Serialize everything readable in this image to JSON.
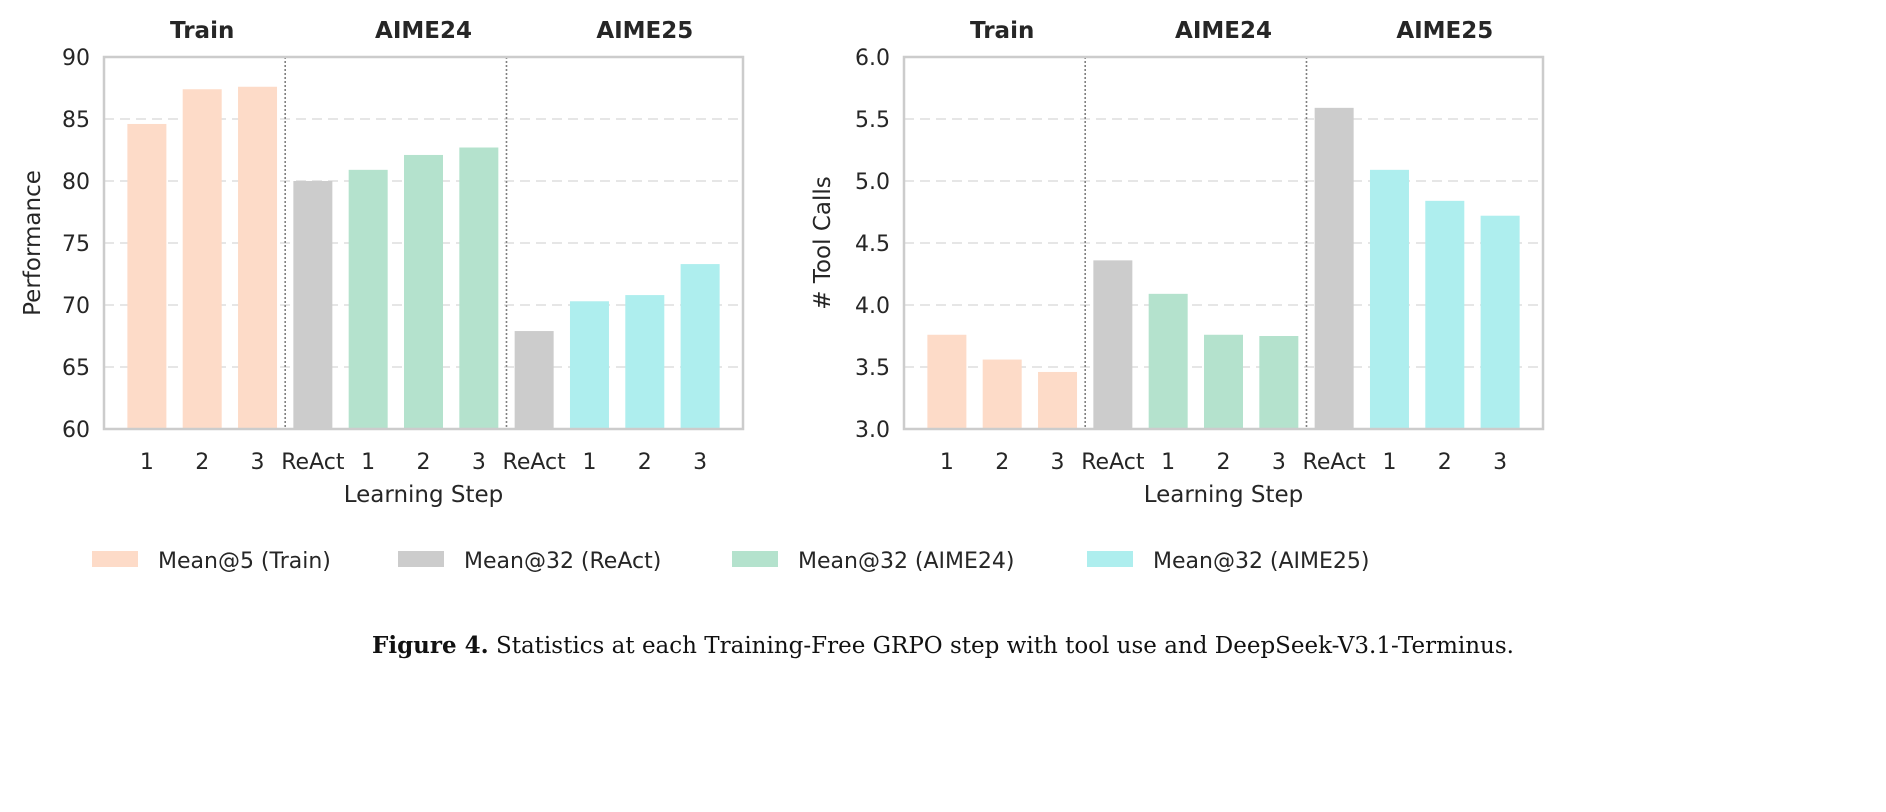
{
  "chart_data": [
    {
      "type": "bar",
      "group_titles": [
        "Train",
        "AIME24",
        "AIME25"
      ],
      "categories": [
        "1",
        "2",
        "3",
        "ReAct",
        "1",
        "2",
        "3",
        "ReAct",
        "1",
        "2",
        "3"
      ],
      "values": [
        84.6,
        87.4,
        87.6,
        80.0,
        80.9,
        82.1,
        82.7,
        67.9,
        70.3,
        70.8,
        73.3
      ],
      "series_index": [
        0,
        0,
        0,
        1,
        2,
        2,
        2,
        1,
        3,
        3,
        3
      ],
      "xlabel": "Learning Step",
      "ylabel": "Performance",
      "ylim": [
        60,
        90
      ],
      "yticks": [
        "60",
        "65",
        "70",
        "75",
        "80",
        "85",
        "90"
      ],
      "grid": true
    },
    {
      "type": "bar",
      "group_titles": [
        "Train",
        "AIME24",
        "AIME25"
      ],
      "categories": [
        "1",
        "2",
        "3",
        "ReAct",
        "1",
        "2",
        "3",
        "ReAct",
        "1",
        "2",
        "3"
      ],
      "values": [
        3.76,
        3.56,
        3.46,
        4.36,
        4.09,
        3.76,
        3.75,
        5.59,
        5.09,
        4.84,
        4.72
      ],
      "series_index": [
        0,
        0,
        0,
        1,
        2,
        2,
        2,
        1,
        3,
        3,
        3
      ],
      "xlabel": "Learning Step",
      "ylabel": "# Tool Calls",
      "ylim": [
        3.0,
        6.0
      ],
      "yticks": [
        "3.0",
        "3.5",
        "4.0",
        "4.5",
        "5.0",
        "5.5",
        "6.0"
      ],
      "grid": true
    }
  ],
  "legend": {
    "placement": "bottom",
    "items": [
      {
        "label": "Mean@5 (Train)",
        "color": "#FDDBC8"
      },
      {
        "label": "Mean@32 (ReAct)",
        "color": "#CCCCCC"
      },
      {
        "label": "Mean@32 (AIME24)",
        "color": "#B4E2CD"
      },
      {
        "label": "Mean@32 (AIME25)",
        "color": "#AEEEEE"
      }
    ]
  },
  "caption": {
    "label": "Figure 4.",
    "text": "Statistics at each Training-Free GRPO step with tool use and DeepSeek-V3.1-Terminus."
  }
}
